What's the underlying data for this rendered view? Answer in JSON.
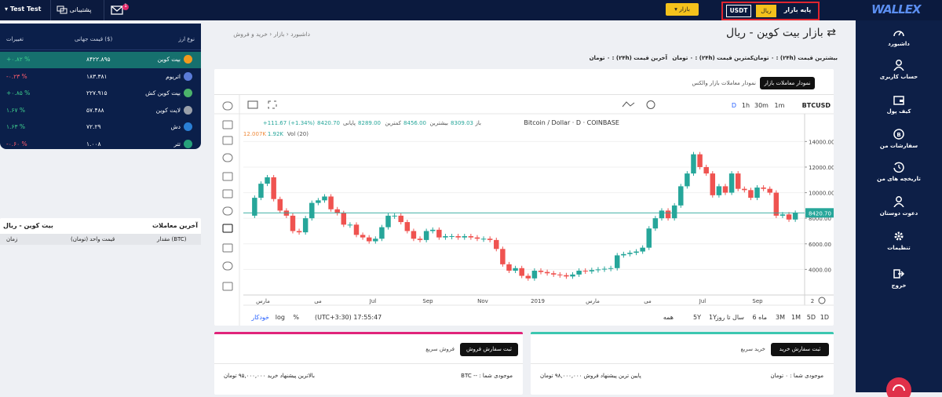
{
  "topbar": {
    "user": "Test Test",
    "support": "پشتیبانی",
    "mail_badge": "1",
    "market_button": "بازار",
    "base_label": "پایه بازار",
    "base_options": [
      "ریال",
      "USDT"
    ],
    "logo": "WALLEX"
  },
  "sidebar": {
    "items": [
      "داشبورد",
      "حساب کاربری",
      "کیف پول",
      "سفارشات من",
      "تاریخچه های من",
      "دعوت دوستان",
      "تنظیمات",
      "خروج"
    ]
  },
  "market_table": {
    "headers": [
      "نوع ارز",
      "قیمت جهانی ($)",
      "تغییرات"
    ],
    "rows": [
      [
        "بیت کوین",
        "۸۴۲۲.۸۹۵",
        "+۰.۸۲ %"
      ],
      [
        "اتریوم",
        "۱۸۳.۳۸۱",
        "-۰.۲۳ %"
      ],
      [
        "بیت کوین کش",
        "۲۲۷.۹۱۵",
        "+۰.۸۵ %"
      ],
      [
        "لایت کوین",
        "۵۷.۴۸۸",
        "۱.۶۷ %"
      ],
      [
        "دش",
        "۷۲.۲۹",
        "۱.۶۳ %"
      ],
      [
        "تتر",
        "۱.۰۰۸",
        "-۰.۶۰ %"
      ]
    ]
  },
  "last_trades": {
    "title": "آخرین معاملات",
    "market": "بیت کوین - ریال",
    "headers": [
      "مقدار (BTC)",
      "قیمت واحد (تومان)",
      "زمان"
    ]
  },
  "breadcrumb": [
    "داشبورد",
    "بازار",
    "خرید و فروش"
  ],
  "page_title": "بازار بیت کوین - ریال",
  "stats": [
    "بیشترین قیمت (۲۴h) : ۰ تومان",
    "کمترین قیمت (۲۴h) : ۰ تومان",
    "آخرین قیمت (۲۴h) : ۰ تومان"
  ],
  "chart_tabs": [
    "نمودار معاملات بازار جهانی",
    "نمودار معاملات بازار والکس"
  ],
  "chart": {
    "symbol": "BTCUSD",
    "intervals": [
      "1m",
      "30m",
      "1h",
      "D"
    ],
    "legend_title": "Bitcoin / Dollar · D · COINBASE",
    "ohlc": [
      "باز",
      "8309.03",
      "بیشترین",
      "8456.00",
      "کمترین",
      "8289.00",
      "پایانی",
      "8420.70",
      "+111.67 (+1.34%)"
    ],
    "volume_legend": [
      "Vol (20)",
      "1.92K",
      "12.007K"
    ],
    "last_price_label": "8420.70",
    "ylim": [
      2000,
      15800
    ],
    "yticks": [
      {
        "value": 4000,
        "label": "4000.00"
      },
      {
        "value": 6000,
        "label": "6000.00"
      },
      {
        "value": 8000,
        "label": "8000.00"
      },
      {
        "value": 10000,
        "label": "10000.00"
      },
      {
        "value": 12000,
        "label": "12000.00"
      },
      {
        "value": 14000,
        "label": "14000.00"
      }
    ],
    "prices": [
      8200,
      9600,
      10700,
      11200,
      9500,
      8600,
      8200,
      7000,
      6900,
      8000,
      9200,
      9400,
      9700,
      8700,
      8400,
      7500,
      7500,
      6700,
      6500,
      6200,
      6400,
      7300,
      8200,
      8200,
      7700,
      7000,
      6400,
      6300,
      7000,
      7100,
      6500,
      6600,
      6600,
      6500,
      6600,
      6500,
      6400,
      6400,
      6300,
      5600,
      4400,
      3900,
      4100,
      3500,
      3300,
      3900,
      3800,
      3700,
      3600,
      3550,
      3450,
      3600,
      3900,
      3850,
      3950,
      4000,
      4050,
      4100,
      5100,
      5200,
      5300,
      5400,
      5700,
      7200,
      8000,
      8600,
      8000,
      9000,
      10500,
      11500,
      13000,
      12000,
      11500,
      9800,
      10500,
      10000,
      11500,
      10300,
      10200,
      9600,
      10400,
      10300,
      10000,
      8200,
      8300,
      7900,
      8420.7
    ],
    "x_labels": [
      "مارس",
      "می",
      "Jul",
      "Sep",
      "Nov",
      "2019",
      "مارس",
      "می",
      "Jul",
      "Sep",
      "2"
    ],
    "ranges": [
      "1D",
      "5D",
      "1M",
      "3M",
      "6 ماه",
      "سال تا روز",
      "1Y",
      "5Y",
      "همه"
    ],
    "clock": "(UTC+3:30) 17:55:47",
    "scale_options": [
      "%",
      "log",
      "خودکار"
    ]
  },
  "sell_card": {
    "button": "ثبت سفارش فروش",
    "tab": "فروش سریع",
    "balance": "موجودی شما : -- BTC",
    "best_offer": "بالاترین پیشنهاد خرید ۹۵,۰۰۰,۰۰۰ تومان"
  },
  "buy_card": {
    "button": "ثبت سفارش خرید",
    "tab": "خرید سریع",
    "balance": "موجودی شما : ۰ تومان",
    "best_offer": "پایین ترین پیشنهاد فروش ۹۸,۰۰۰,۰۰۰ تومان"
  }
}
